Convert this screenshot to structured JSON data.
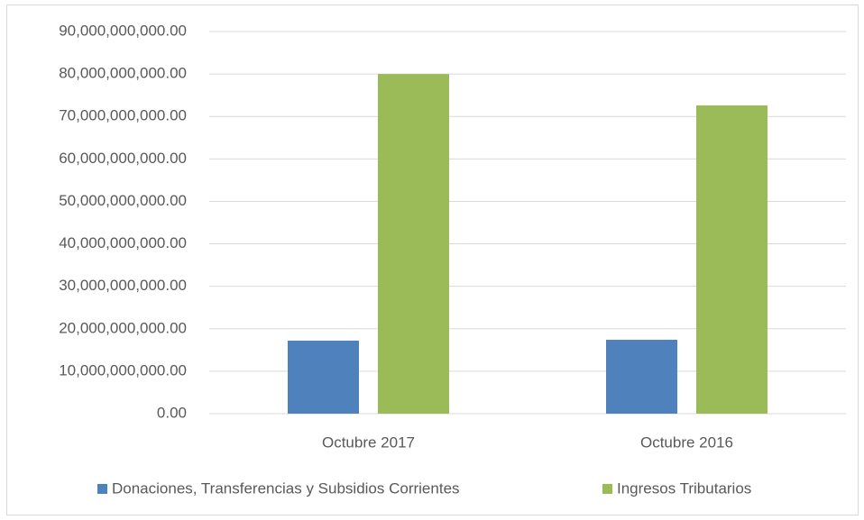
{
  "chart_data": {
    "type": "bar",
    "categories": [
      "Octubre 2017",
      "Octubre 2016"
    ],
    "series": [
      {
        "name": "Donaciones, Transferencias y Subsidios Corrientes",
        "color": "#4f81bd",
        "values": [
          17200000000,
          17400000000
        ]
      },
      {
        "name": "Ingresos Tributarios",
        "color": "#9bbb59",
        "values": [
          80000000000,
          72600000000
        ]
      }
    ],
    "ylim": [
      0,
      90000000000
    ],
    "yticks": [
      {
        "value": 0,
        "label": "0.00"
      },
      {
        "value": 10000000000,
        "label": "10,000,000,000.00"
      },
      {
        "value": 20000000000,
        "label": "20,000,000,000.00"
      },
      {
        "value": 30000000000,
        "label": "30,000,000,000.00"
      },
      {
        "value": 40000000000,
        "label": "40,000,000,000.00"
      },
      {
        "value": 50000000000,
        "label": "50,000,000,000.00"
      },
      {
        "value": 60000000000,
        "label": "60,000,000,000.00"
      },
      {
        "value": 70000000000,
        "label": "70,000,000,000.00"
      },
      {
        "value": 80000000000,
        "label": "80,000,000,000.00"
      },
      {
        "value": 90000000000,
        "label": "90,000,000,000.00"
      }
    ],
    "grid": true,
    "legend": "bottom"
  }
}
